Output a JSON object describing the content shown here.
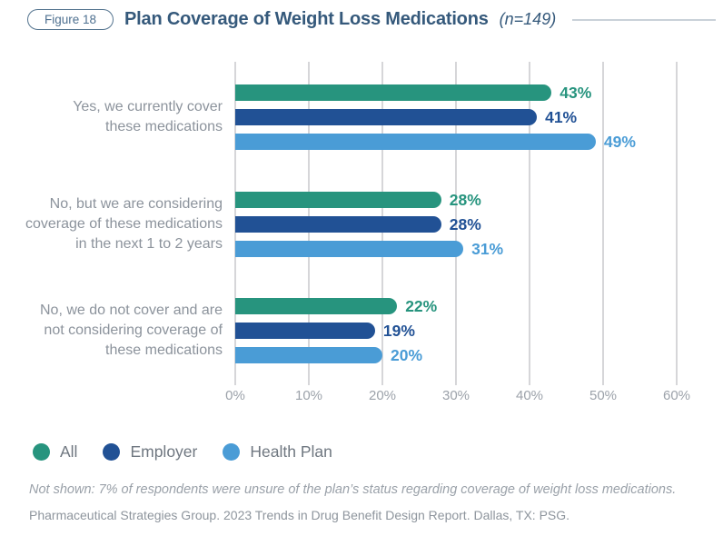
{
  "header": {
    "figure_label": "Figure 18",
    "title": "Plan Coverage of Weight Loss Medications",
    "sample_note": "(n=149)"
  },
  "chart_data": {
    "type": "bar",
    "orientation": "horizontal",
    "title": "Plan Coverage of Weight Loss Medications",
    "sample_size": "n=149",
    "categories": [
      {
        "lines": [
          "Yes, we currently cover",
          "these medications"
        ]
      },
      {
        "lines": [
          "No, but we are considering",
          "coverage of these medications",
          "in the next 1 to 2 years"
        ]
      },
      {
        "lines": [
          "No, we do not cover and are",
          "not considering coverage of",
          "these medications"
        ]
      }
    ],
    "series": [
      {
        "name": "All",
        "color": "#27947e",
        "values": [
          43,
          28,
          22
        ]
      },
      {
        "name": "Employer",
        "color": "#215195",
        "values": [
          41,
          28,
          19
        ]
      },
      {
        "name": "Health Plan",
        "color": "#4a9cd6",
        "values": [
          49,
          31,
          20
        ]
      }
    ],
    "x_ticks": [
      "0%",
      "10%",
      "20%",
      "30%",
      "40%",
      "50%",
      "60%"
    ],
    "xlim": [
      0,
      60
    ],
    "value_suffix": "%",
    "grid": "vertical",
    "legend_position": "bottom-left"
  },
  "footnotes": {
    "not_shown": "Not shown: 7% of respondents were unsure of the plan’s status regarding coverage of weight loss medications.",
    "source": "Pharmaceutical Strategies Group. 2023 Trends in Drug Benefit Design Report. Dallas, TX: PSG."
  }
}
